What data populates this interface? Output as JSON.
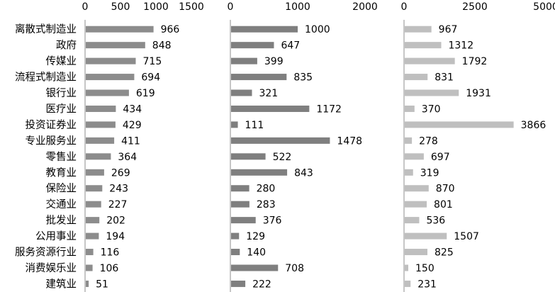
{
  "chart_data": [
    {
      "type": "bar",
      "orientation": "horizontal",
      "categories": [
        "离散式制造业",
        "政府",
        "传媒业",
        "流程式制造业",
        "银行业",
        "医疗业",
        "投资证券业",
        "专业服务业",
        "零售业",
        "教育业",
        "保险业",
        "交通业",
        "批发业",
        "公用事业",
        "服务资源行业",
        "消费娱乐业",
        "建筑业"
      ],
      "values": [
        966,
        848,
        715,
        694,
        619,
        434,
        429,
        411,
        364,
        269,
        243,
        227,
        202,
        194,
        116,
        106,
        51
      ],
      "xlim": [
        0,
        1500
      ],
      "xticks": [
        0,
        500,
        1000,
        1500
      ],
      "color": "#8c8c8c",
      "axis_position": "top",
      "grid": false
    },
    {
      "type": "bar",
      "orientation": "horizontal",
      "categories": [
        "离散式制造业",
        "政府",
        "传媒业",
        "流程式制造业",
        "银行业",
        "医疗业",
        "投资证券业",
        "专业服务业",
        "零售业",
        "教育业",
        "保险业",
        "交通业",
        "批发业",
        "公用事业",
        "服务资源行业",
        "消费娱乐业",
        "建筑业"
      ],
      "values": [
        1000,
        647,
        399,
        835,
        321,
        1172,
        111,
        1478,
        522,
        843,
        280,
        283,
        376,
        129,
        140,
        708,
        222
      ],
      "xlim": [
        0,
        2000
      ],
      "xticks": [
        0,
        1000,
        2000
      ],
      "color": "#7f7f7f",
      "axis_position": "top",
      "grid": false
    },
    {
      "type": "bar",
      "orientation": "horizontal",
      "categories": [
        "离散式制造业",
        "政府",
        "传媒业",
        "流程式制造业",
        "银行业",
        "医疗业",
        "投资证券业",
        "专业服务业",
        "零售业",
        "教育业",
        "保险业",
        "交通业",
        "批发业",
        "公用事业",
        "服务资源行业",
        "消费娱乐业",
        "建筑业"
      ],
      "values": [
        967,
        1312,
        1792,
        831,
        1931,
        370,
        3866,
        278,
        697,
        319,
        870,
        801,
        536,
        1507,
        825,
        150,
        231
      ],
      "xlim": [
        0,
        5000
      ],
      "xticks": [
        0,
        2500,
        5000
      ],
      "color": "#bfbfbf",
      "axis_position": "top",
      "grid": false
    }
  ]
}
